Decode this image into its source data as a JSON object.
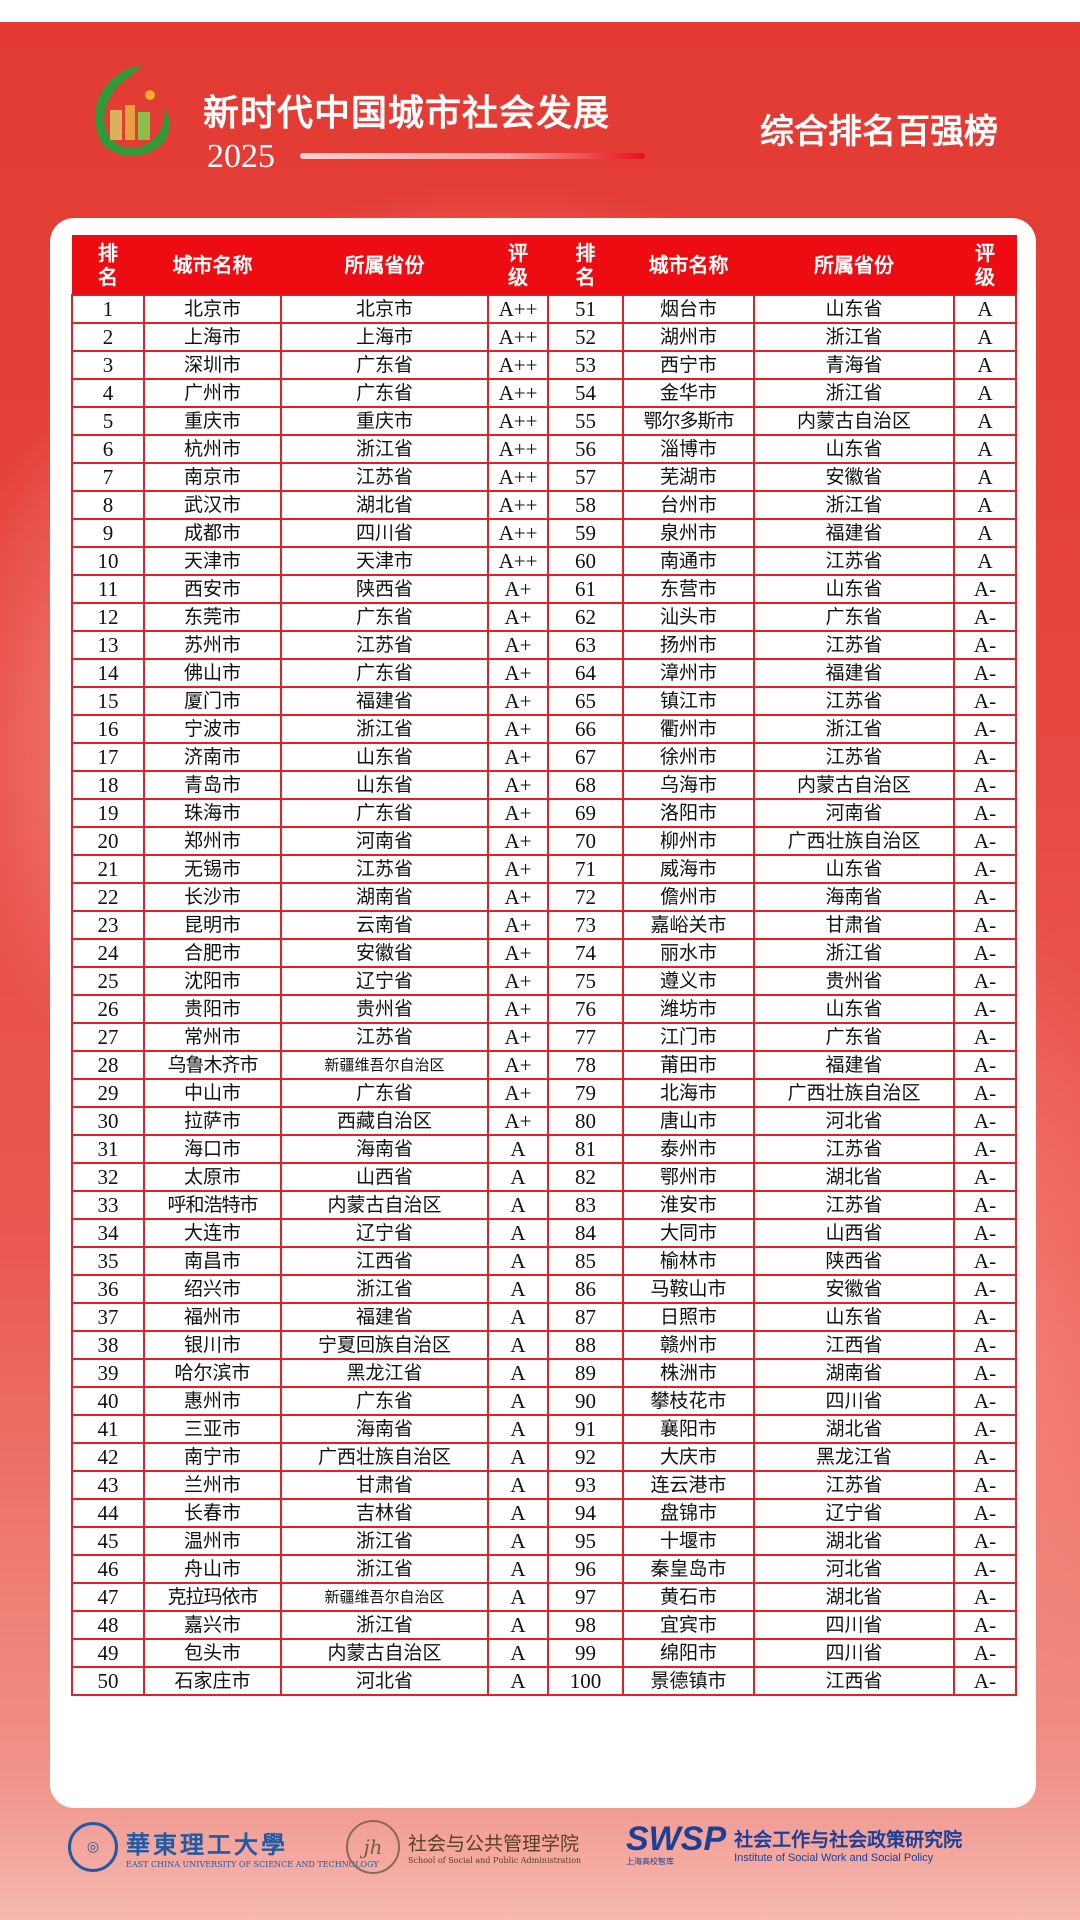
{
  "header": {
    "title": "新时代中国城市社会发展",
    "year": "2025",
    "subtitle": "综合排名百强榜"
  },
  "columns": {
    "rank": "排名",
    "city": "城市名称",
    "province": "所属省份",
    "grade": "评级"
  },
  "rankings": [
    [
      "1",
      "北京市",
      "北京市",
      "A++"
    ],
    [
      "2",
      "上海市",
      "上海市",
      "A++"
    ],
    [
      "3",
      "深圳市",
      "广东省",
      "A++"
    ],
    [
      "4",
      "广州市",
      "广东省",
      "A++"
    ],
    [
      "5",
      "重庆市",
      "重庆市",
      "A++"
    ],
    [
      "6",
      "杭州市",
      "浙江省",
      "A++"
    ],
    [
      "7",
      "南京市",
      "江苏省",
      "A++"
    ],
    [
      "8",
      "武汉市",
      "湖北省",
      "A++"
    ],
    [
      "9",
      "成都市",
      "四川省",
      "A++"
    ],
    [
      "10",
      "天津市",
      "天津市",
      "A++"
    ],
    [
      "11",
      "西安市",
      "陕西省",
      "A+"
    ],
    [
      "12",
      "东莞市",
      "广东省",
      "A+"
    ],
    [
      "13",
      "苏州市",
      "江苏省",
      "A+"
    ],
    [
      "14",
      "佛山市",
      "广东省",
      "A+"
    ],
    [
      "15",
      "厦门市",
      "福建省",
      "A+"
    ],
    [
      "16",
      "宁波市",
      "浙江省",
      "A+"
    ],
    [
      "17",
      "济南市",
      "山东省",
      "A+"
    ],
    [
      "18",
      "青岛市",
      "山东省",
      "A+"
    ],
    [
      "19",
      "珠海市",
      "广东省",
      "A+"
    ],
    [
      "20",
      "郑州市",
      "河南省",
      "A+"
    ],
    [
      "21",
      "无锡市",
      "江苏省",
      "A+"
    ],
    [
      "22",
      "长沙市",
      "湖南省",
      "A+"
    ],
    [
      "23",
      "昆明市",
      "云南省",
      "A+"
    ],
    [
      "24",
      "合肥市",
      "安徽省",
      "A+"
    ],
    [
      "25",
      "沈阳市",
      "辽宁省",
      "A+"
    ],
    [
      "26",
      "贵阳市",
      "贵州省",
      "A+"
    ],
    [
      "27",
      "常州市",
      "江苏省",
      "A+"
    ],
    [
      "28",
      "乌鲁木齐市",
      "新疆维吾尔自治区",
      "A+"
    ],
    [
      "29",
      "中山市",
      "广东省",
      "A+"
    ],
    [
      "30",
      "拉萨市",
      "西藏自治区",
      "A+"
    ],
    [
      "31",
      "海口市",
      "海南省",
      "A"
    ],
    [
      "32",
      "太原市",
      "山西省",
      "A"
    ],
    [
      "33",
      "呼和浩特市",
      "内蒙古自治区",
      "A"
    ],
    [
      "34",
      "大连市",
      "辽宁省",
      "A"
    ],
    [
      "35",
      "南昌市",
      "江西省",
      "A"
    ],
    [
      "36",
      "绍兴市",
      "浙江省",
      "A"
    ],
    [
      "37",
      "福州市",
      "福建省",
      "A"
    ],
    [
      "38",
      "银川市",
      "宁夏回族自治区",
      "A"
    ],
    [
      "39",
      "哈尔滨市",
      "黑龙江省",
      "A"
    ],
    [
      "40",
      "惠州市",
      "广东省",
      "A"
    ],
    [
      "41",
      "三亚市",
      "海南省",
      "A"
    ],
    [
      "42",
      "南宁市",
      "广西壮族自治区",
      "A"
    ],
    [
      "43",
      "兰州市",
      "甘肃省",
      "A"
    ],
    [
      "44",
      "长春市",
      "吉林省",
      "A"
    ],
    [
      "45",
      "温州市",
      "浙江省",
      "A"
    ],
    [
      "46",
      "舟山市",
      "浙江省",
      "A"
    ],
    [
      "47",
      "克拉玛依市",
      "新疆维吾尔自治区",
      "A"
    ],
    [
      "48",
      "嘉兴市",
      "浙江省",
      "A"
    ],
    [
      "49",
      "包头市",
      "内蒙古自治区",
      "A"
    ],
    [
      "50",
      "石家庄市",
      "河北省",
      "A"
    ],
    [
      "51",
      "烟台市",
      "山东省",
      "A"
    ],
    [
      "52",
      "湖州市",
      "浙江省",
      "A"
    ],
    [
      "53",
      "西宁市",
      "青海省",
      "A"
    ],
    [
      "54",
      "金华市",
      "浙江省",
      "A"
    ],
    [
      "55",
      "鄂尔多斯市",
      "内蒙古自治区",
      "A"
    ],
    [
      "56",
      "淄博市",
      "山东省",
      "A"
    ],
    [
      "57",
      "芜湖市",
      "安徽省",
      "A"
    ],
    [
      "58",
      "台州市",
      "浙江省",
      "A"
    ],
    [
      "59",
      "泉州市",
      "福建省",
      "A"
    ],
    [
      "60",
      "南通市",
      "江苏省",
      "A"
    ],
    [
      "61",
      "东营市",
      "山东省",
      "A-"
    ],
    [
      "62",
      "汕头市",
      "广东省",
      "A-"
    ],
    [
      "63",
      "扬州市",
      "江苏省",
      "A-"
    ],
    [
      "64",
      "漳州市",
      "福建省",
      "A-"
    ],
    [
      "65",
      "镇江市",
      "江苏省",
      "A-"
    ],
    [
      "66",
      "衢州市",
      "浙江省",
      "A-"
    ],
    [
      "67",
      "徐州市",
      "江苏省",
      "A-"
    ],
    [
      "68",
      "乌海市",
      "内蒙古自治区",
      "A-"
    ],
    [
      "69",
      "洛阳市",
      "河南省",
      "A-"
    ],
    [
      "70",
      "柳州市",
      "广西壮族自治区",
      "A-"
    ],
    [
      "71",
      "威海市",
      "山东省",
      "A-"
    ],
    [
      "72",
      "儋州市",
      "海南省",
      "A-"
    ],
    [
      "73",
      "嘉峪关市",
      "甘肃省",
      "A-"
    ],
    [
      "74",
      "丽水市",
      "浙江省",
      "A-"
    ],
    [
      "75",
      "遵义市",
      "贵州省",
      "A-"
    ],
    [
      "76",
      "潍坊市",
      "山东省",
      "A-"
    ],
    [
      "77",
      "江门市",
      "广东省",
      "A-"
    ],
    [
      "78",
      "莆田市",
      "福建省",
      "A-"
    ],
    [
      "79",
      "北海市",
      "广西壮族自治区",
      "A-"
    ],
    [
      "80",
      "唐山市",
      "河北省",
      "A-"
    ],
    [
      "81",
      "泰州市",
      "江苏省",
      "A-"
    ],
    [
      "82",
      "鄂州市",
      "湖北省",
      "A-"
    ],
    [
      "83",
      "淮安市",
      "江苏省",
      "A-"
    ],
    [
      "84",
      "大同市",
      "山西省",
      "A-"
    ],
    [
      "85",
      "榆林市",
      "陕西省",
      "A-"
    ],
    [
      "86",
      "马鞍山市",
      "安徽省",
      "A-"
    ],
    [
      "87",
      "日照市",
      "山东省",
      "A-"
    ],
    [
      "88",
      "赣州市",
      "江西省",
      "A-"
    ],
    [
      "89",
      "株洲市",
      "湖南省",
      "A-"
    ],
    [
      "90",
      "攀枝花市",
      "四川省",
      "A-"
    ],
    [
      "91",
      "襄阳市",
      "湖北省",
      "A-"
    ],
    [
      "92",
      "大庆市",
      "黑龙江省",
      "A-"
    ],
    [
      "93",
      "连云港市",
      "江苏省",
      "A-"
    ],
    [
      "94",
      "盘锦市",
      "辽宁省",
      "A-"
    ],
    [
      "95",
      "十堰市",
      "湖北省",
      "A-"
    ],
    [
      "96",
      "秦皇岛市",
      "河北省",
      "A-"
    ],
    [
      "97",
      "黄石市",
      "湖北省",
      "A-"
    ],
    [
      "98",
      "宜宾市",
      "四川省",
      "A-"
    ],
    [
      "99",
      "绵阳市",
      "四川省",
      "A-"
    ],
    [
      "100",
      "景德镇市",
      "江西省",
      "A-"
    ]
  ],
  "footer": {
    "ecust_cn": "華東理工大學",
    "ecust_en": "EAST CHINA UNIVERSITY OF SCIENCE AND TECHNOLOGY",
    "school_cn": "社会与公共管理学院",
    "school_en": "School of Social and Public Administration",
    "swsp_logo": "SWSP",
    "swsp_sub": "上海高校智库",
    "institute_cn": "社会工作与社会政策研究院",
    "institute_en": "Institute of  Social Work and Social Policy"
  },
  "colors": {
    "header_red": "#ee0c13",
    "grid_red": "#e3202a",
    "background_red": "#e23a33",
    "logo_green": "#2e9a3a"
  }
}
